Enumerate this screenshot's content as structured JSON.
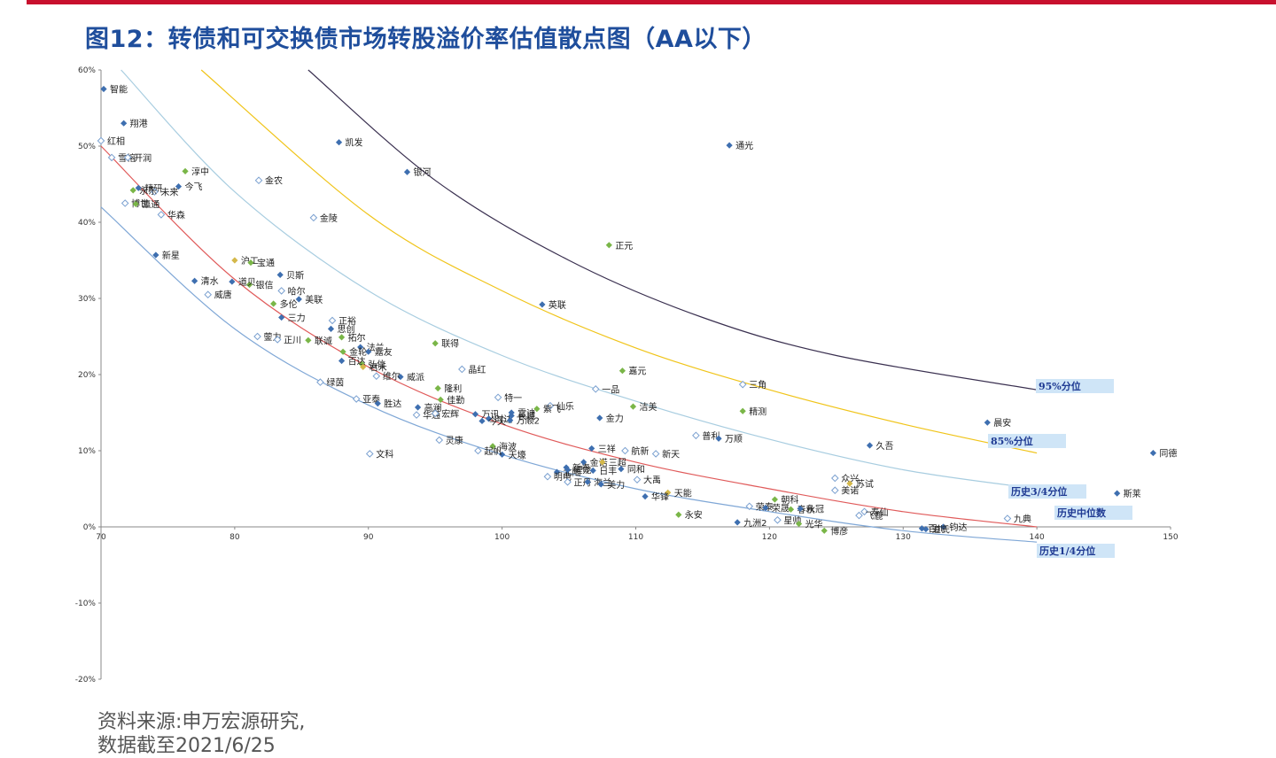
{
  "title": "图12：转债和可交换债市场转股溢价率估值散点图（AA以下）",
  "source_lines": [
    "资料来源:申万宏源研究,",
    "数据截至2021/6/25"
  ],
  "colors": {
    "accent": "#c8102e",
    "title": "#1f4e9c",
    "point": "#3e6fb0",
    "green": "#7ab648",
    "yellow": "#d4b84a"
  },
  "chart_data": {
    "type": "scatter",
    "title": "",
    "xlabel": "",
    "ylabel": "",
    "xlim": [
      70,
      150
    ],
    "ylim": [
      -0.2,
      0.6
    ],
    "x_ticks": [
      70,
      80,
      90,
      100,
      110,
      120,
      130,
      140,
      150
    ],
    "x_tick_labels": [
      "70",
      "80",
      "90",
      "100",
      "110",
      "120",
      "130",
      "140",
      "150"
    ],
    "y_ticks": [
      0.6,
      0.5,
      0.4,
      0.3,
      0.2,
      0.1,
      0.0,
      -0.1,
      -0.2
    ],
    "y_tick_labels": [
      "60%",
      "50%",
      "40%",
      "30%",
      "20%",
      "10%",
      "0%",
      "-10%",
      "-20%"
    ],
    "curves": [
      {
        "name": "95%分位",
        "color": "#3a3050",
        "label_box": true,
        "points": [
          [
            85.5,
            0.6
          ],
          [
            95,
            0.455
          ],
          [
            105,
            0.35
          ],
          [
            115,
            0.275
          ],
          [
            125,
            0.225
          ],
          [
            140,
            0.18
          ]
        ]
      },
      {
        "name": "85%分位",
        "color": "#f0c419",
        "label_box": true,
        "points": [
          [
            77.5,
            0.6
          ],
          [
            90,
            0.41
          ],
          [
            100,
            0.31
          ],
          [
            110,
            0.235
          ],
          [
            120,
            0.18
          ],
          [
            130,
            0.135
          ],
          [
            140,
            0.097
          ]
        ]
      },
      {
        "name": "历史3/4分位",
        "color": "#a8cde0",
        "label_box": true,
        "points": [
          [
            71.5,
            0.6
          ],
          [
            80,
            0.44
          ],
          [
            90,
            0.31
          ],
          [
            100,
            0.225
          ],
          [
            110,
            0.165
          ],
          [
            120,
            0.115
          ],
          [
            130,
            0.075
          ],
          [
            140,
            0.05
          ]
        ]
      },
      {
        "name": "历史中位数",
        "color": "#e05a5a",
        "label_box": true,
        "points": [
          [
            70,
            0.5
          ],
          [
            80,
            0.325
          ],
          [
            90,
            0.21
          ],
          [
            100,
            0.135
          ],
          [
            110,
            0.085
          ],
          [
            120,
            0.05
          ],
          [
            130,
            0.02
          ],
          [
            140,
            0.0
          ]
        ]
      },
      {
        "name": "历史1/4分位",
        "color": "#7fa7d6",
        "label_box": true,
        "points": [
          [
            70,
            0.42
          ],
          [
            80,
            0.26
          ],
          [
            90,
            0.16
          ],
          [
            100,
            0.095
          ],
          [
            110,
            0.05
          ],
          [
            120,
            0.02
          ],
          [
            130,
            -0.005
          ],
          [
            140,
            -0.02
          ]
        ]
      }
    ],
    "points": [
      {
        "name": "智能",
        "x": 70.2,
        "y": 0.575,
        "t": "d"
      },
      {
        "name": "翔港",
        "x": 71.7,
        "y": 0.53,
        "t": "d"
      },
      {
        "name": "红相",
        "x": 70,
        "y": 0.507,
        "t": "o"
      },
      {
        "name": "雪榕",
        "x": 70.8,
        "y": 0.485,
        "t": "o"
      },
      {
        "name": "开润",
        "x": 72,
        "y": 0.485,
        "t": "o"
      },
      {
        "name": "淳中",
        "x": 76.3,
        "y": 0.467,
        "t": "g"
      },
      {
        "name": "金农",
        "x": 81.8,
        "y": 0.455,
        "t": "o"
      },
      {
        "name": "精研",
        "x": 72.8,
        "y": 0.445,
        "t": "d"
      },
      {
        "name": "未来",
        "x": 74,
        "y": 0.44,
        "t": "o"
      },
      {
        "name": "永东",
        "x": 72.4,
        "y": 0.442,
        "t": "g"
      },
      {
        "name": "今飞",
        "x": 75.8,
        "y": 0.447,
        "t": "d"
      },
      {
        "name": "博世",
        "x": 71.8,
        "y": 0.425,
        "t": "o"
      },
      {
        "name": "瀛通",
        "x": 72.6,
        "y": 0.424,
        "t": "g"
      },
      {
        "name": "华森",
        "x": 74.5,
        "y": 0.41,
        "t": "o"
      },
      {
        "name": "金陵",
        "x": 85.9,
        "y": 0.406,
        "t": "o"
      },
      {
        "name": "凯发",
        "x": 87.8,
        "y": 0.505,
        "t": "d"
      },
      {
        "name": "银河",
        "x": 92.9,
        "y": 0.466,
        "t": "d"
      },
      {
        "name": "通光",
        "x": 117,
        "y": 0.501,
        "t": "d"
      },
      {
        "name": "正元",
        "x": 108,
        "y": 0.37,
        "t": "g"
      },
      {
        "name": "新星",
        "x": 74.1,
        "y": 0.357,
        "t": "d"
      },
      {
        "name": "沪工",
        "x": 80,
        "y": 0.35,
        "t": "y"
      },
      {
        "name": "宝通",
        "x": 81.2,
        "y": 0.347,
        "t": "g"
      },
      {
        "name": "贝斯",
        "x": 83.4,
        "y": 0.331,
        "t": "d"
      },
      {
        "name": "清水",
        "x": 77,
        "y": 0.323,
        "t": "d"
      },
      {
        "name": "银信",
        "x": 81.1,
        "y": 0.318,
        "t": "g"
      },
      {
        "name": "道贝",
        "x": 79.8,
        "y": 0.322,
        "t": "d"
      },
      {
        "name": "哈尔",
        "x": 83.5,
        "y": 0.31,
        "t": "o"
      },
      {
        "name": "威唐",
        "x": 78,
        "y": 0.305,
        "t": "o"
      },
      {
        "name": "美联",
        "x": 84.8,
        "y": 0.299,
        "t": "d"
      },
      {
        "name": "英联",
        "x": 103,
        "y": 0.292,
        "t": "d"
      },
      {
        "name": "多伦",
        "x": 82.9,
        "y": 0.293,
        "t": "g"
      },
      {
        "name": "正裕",
        "x": 87.3,
        "y": 0.271,
        "t": "o"
      },
      {
        "name": "三力",
        "x": 83.5,
        "y": 0.275,
        "t": "d"
      },
      {
        "name": "思创",
        "x": 87.2,
        "y": 0.26,
        "t": "d"
      },
      {
        "name": "拓尔",
        "x": 88,
        "y": 0.249,
        "t": "g"
      },
      {
        "name": "蓥力",
        "x": 81.7,
        "y": 0.25,
        "t": "o"
      },
      {
        "name": "正川",
        "x": 83.2,
        "y": 0.246,
        "t": "o"
      },
      {
        "name": "联诚",
        "x": 85.5,
        "y": 0.245,
        "t": "g"
      },
      {
        "name": "法兰",
        "x": 89.4,
        "y": 0.236,
        "t": "d"
      },
      {
        "name": "嘉友",
        "x": 90,
        "y": 0.23,
        "t": "d"
      },
      {
        "name": "金轮",
        "x": 88.1,
        "y": 0.23,
        "t": "g"
      },
      {
        "name": "联得",
        "x": 95,
        "y": 0.241,
        "t": "g"
      },
      {
        "name": "弘信",
        "x": 89.5,
        "y": 0.214,
        "t": "g"
      },
      {
        "name": "百达",
        "x": 88,
        "y": 0.218,
        "t": "d"
      },
      {
        "name": "君禾",
        "x": 89.6,
        "y": 0.21,
        "t": "y"
      },
      {
        "name": "嘉元",
        "x": 109,
        "y": 0.205,
        "t": "g"
      },
      {
        "name": "威派",
        "x": 92.4,
        "y": 0.197,
        "t": "d"
      },
      {
        "name": "维尔",
        "x": 90.6,
        "y": 0.198,
        "t": "o"
      },
      {
        "name": "晶红",
        "x": 97,
        "y": 0.207,
        "t": "o"
      },
      {
        "name": "隆利",
        "x": 95.2,
        "y": 0.182,
        "t": "g"
      },
      {
        "name": "三角",
        "x": 118,
        "y": 0.187,
        "t": "o"
      },
      {
        "name": "绿茵",
        "x": 86.4,
        "y": 0.19,
        "t": "o"
      },
      {
        "name": "一品",
        "x": 107,
        "y": 0.181,
        "t": "o"
      },
      {
        "name": "特一",
        "x": 99.7,
        "y": 0.17,
        "t": "o"
      },
      {
        "name": "高澜",
        "x": 93.7,
        "y": 0.157,
        "t": "d"
      },
      {
        "name": "仙乐",
        "x": 103.6,
        "y": 0.159,
        "t": "o"
      },
      {
        "name": "佳勤",
        "x": 95.4,
        "y": 0.167,
        "t": "g"
      },
      {
        "name": "亚泰",
        "x": 89.1,
        "y": 0.168,
        "t": "o"
      },
      {
        "name": "胜达",
        "x": 90.7,
        "y": 0.162,
        "t": "d"
      },
      {
        "name": "洁美",
        "x": 109.8,
        "y": 0.158,
        "t": "g"
      },
      {
        "name": "精测",
        "x": 118,
        "y": 0.152,
        "t": "g"
      },
      {
        "name": "万讯",
        "x": 98,
        "y": 0.148,
        "t": "d"
      },
      {
        "name": "时达",
        "x": 99,
        "y": 0.142,
        "t": "d"
      },
      {
        "name": "雷迪",
        "x": 100.7,
        "y": 0.15,
        "t": "d"
      },
      {
        "name": "紫飞",
        "x": 102.6,
        "y": 0.155,
        "t": "g"
      },
      {
        "name": "金力",
        "x": 107.3,
        "y": 0.143,
        "t": "d"
      },
      {
        "name": "华通",
        "x": 93.6,
        "y": 0.147,
        "t": "o"
      },
      {
        "name": "宏辉",
        "x": 95,
        "y": 0.149,
        "t": "o"
      },
      {
        "name": "今天",
        "x": 98.5,
        "y": 0.139,
        "t": "d"
      },
      {
        "name": "万顺2",
        "x": 100.6,
        "y": 0.14,
        "t": "d"
      },
      {
        "name": "长城",
        "x": 100.7,
        "y": 0.146,
        "t": "d"
      },
      {
        "name": "普利",
        "x": 114.5,
        "y": 0.12,
        "t": "o"
      },
      {
        "name": "万顺",
        "x": 116.2,
        "y": 0.116,
        "t": "d"
      },
      {
        "name": "灵康",
        "x": 95.3,
        "y": 0.114,
        "t": "o"
      },
      {
        "name": "三祥",
        "x": 106.7,
        "y": 0.103,
        "t": "d"
      },
      {
        "name": "航新",
        "x": 109.2,
        "y": 0.1,
        "t": "o"
      },
      {
        "name": "文科",
        "x": 90.1,
        "y": 0.096,
        "t": "o"
      },
      {
        "name": "海波",
        "x": 99.3,
        "y": 0.106,
        "t": "g"
      },
      {
        "name": "天壕",
        "x": 100,
        "y": 0.095,
        "t": "d"
      },
      {
        "name": "起帆",
        "x": 98.2,
        "y": 0.1,
        "t": "o"
      },
      {
        "name": "新春",
        "x": 104.8,
        "y": 0.078,
        "t": "d"
      },
      {
        "name": "金诺",
        "x": 106.1,
        "y": 0.085,
        "t": "d"
      },
      {
        "name": "三超",
        "x": 107.5,
        "y": 0.085,
        "t": "y"
      },
      {
        "name": "新天",
        "x": 111.5,
        "y": 0.096,
        "t": "o"
      },
      {
        "name": "久吾",
        "x": 127.5,
        "y": 0.107,
        "t": "d"
      },
      {
        "name": "北陆",
        "x": 104.1,
        "y": 0.072,
        "t": "d"
      },
      {
        "name": "同和",
        "x": 108.9,
        "y": 0.076,
        "t": "d"
      },
      {
        "name": "明电",
        "x": 103.4,
        "y": 0.066,
        "t": "o"
      },
      {
        "name": "锂龙",
        "x": 104.9,
        "y": 0.075,
        "t": "d"
      },
      {
        "name": "日丰",
        "x": 106.8,
        "y": 0.074,
        "t": "d"
      },
      {
        "name": "众兴",
        "x": 124.9,
        "y": 0.064,
        "t": "o"
      },
      {
        "name": "苏试",
        "x": 126,
        "y": 0.057,
        "t": "y"
      },
      {
        "name": "大禹",
        "x": 110.1,
        "y": 0.062,
        "t": "o"
      },
      {
        "name": "正丹",
        "x": 104.9,
        "y": 0.059,
        "t": "o"
      },
      {
        "name": "海兰",
        "x": 106.4,
        "y": 0.059,
        "t": "d"
      },
      {
        "name": "美力",
        "x": 107.4,
        "y": 0.056,
        "t": "d"
      },
      {
        "name": "天能",
        "x": 112.4,
        "y": 0.045,
        "t": "y"
      },
      {
        "name": "朝科",
        "x": 120.4,
        "y": 0.036,
        "t": "g"
      },
      {
        "name": "美诺",
        "x": 124.9,
        "y": 0.048,
        "t": "o"
      },
      {
        "name": "华锋",
        "x": 110.7,
        "y": 0.04,
        "t": "d"
      },
      {
        "name": "荣泰",
        "x": 118.5,
        "y": 0.027,
        "t": "o"
      },
      {
        "name": "荣晟",
        "x": 119.7,
        "y": 0.025,
        "t": "d"
      },
      {
        "name": "春秋",
        "x": 121.6,
        "y": 0.023,
        "t": "g"
      },
      {
        "name": "永冠",
        "x": 122.3,
        "y": 0.024,
        "t": "d"
      },
      {
        "name": "寿仙",
        "x": 127.1,
        "y": 0.02,
        "t": "o"
      },
      {
        "name": "飞鹿",
        "x": 126.7,
        "y": 0.015,
        "t": "o"
      },
      {
        "name": "永安",
        "x": 113.2,
        "y": 0.016,
        "t": "g"
      },
      {
        "name": "九洲2",
        "x": 117.6,
        "y": 0.006,
        "t": "d"
      },
      {
        "name": "星帅",
        "x": 120.6,
        "y": 0.009,
        "t": "o"
      },
      {
        "name": "光华",
        "x": 122.2,
        "y": 0.004,
        "t": "g"
      },
      {
        "name": "博彦",
        "x": 124.1,
        "y": -0.005,
        "t": "g"
      },
      {
        "name": "钧达",
        "x": 133,
        "y": 0.0,
        "t": "d"
      },
      {
        "name": "百川",
        "x": 131.4,
        "y": -0.002,
        "t": "d"
      },
      {
        "name": "道氏",
        "x": 131.7,
        "y": -0.003,
        "t": "d"
      },
      {
        "name": "九典",
        "x": 137.8,
        "y": 0.011,
        "t": "o"
      },
      {
        "name": "晨安",
        "x": 136.3,
        "y": 0.137,
        "t": "d"
      },
      {
        "name": "斯莱",
        "x": 146,
        "y": 0.044,
        "t": "d"
      },
      {
        "name": "同德",
        "x": 148.7,
        "y": 0.097,
        "t": "d"
      }
    ]
  }
}
